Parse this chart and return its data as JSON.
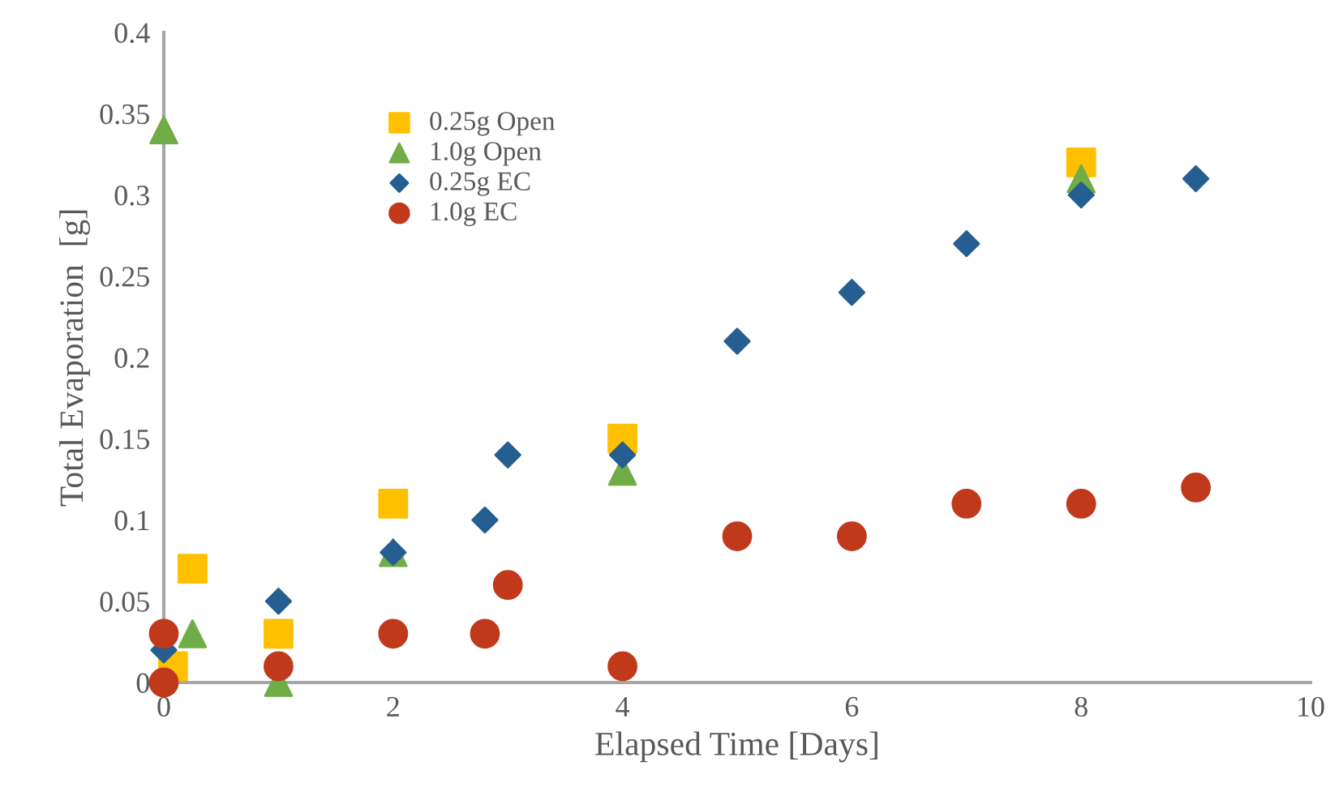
{
  "chart_data": {
    "type": "scatter",
    "xlabel": "Elapsed Time [Days]",
    "ylabel": "Total Evaporation  [g]",
    "xlim": [
      0,
      10
    ],
    "ylim": [
      0,
      0.4
    ],
    "xticks": [
      0,
      2,
      4,
      6,
      8,
      10
    ],
    "yticks": [
      0,
      0.05,
      0.1,
      0.15,
      0.2,
      0.25,
      0.3,
      0.35,
      0.4
    ],
    "grid": false,
    "legend": "top left",
    "series": [
      {
        "name": "0.25g Open",
        "color": "#ffc000",
        "marker": "square",
        "x": [
          0.08,
          0.25,
          1,
          2,
          4,
          8
        ],
        "values": [
          0.01,
          0.07,
          0.03,
          0.11,
          0.15,
          0.32
        ]
      },
      {
        "name": "1.0g Open",
        "color": "#70ad47",
        "marker": "triangle",
        "x": [
          0,
          0.25,
          1,
          2,
          4,
          8
        ],
        "values": [
          0.34,
          0.03,
          0,
          0.08,
          0.13,
          0.31
        ]
      },
      {
        "name": "0.25g EC",
        "color": "#255e91",
        "marker": "diamond",
        "x": [
          0,
          1,
          2,
          2.8,
          3,
          4,
          5,
          6,
          7,
          8,
          9
        ],
        "values": [
          0.02,
          0.05,
          0.08,
          0.1,
          0.14,
          0.14,
          0.21,
          0.24,
          0.27,
          0.3,
          0.31
        ]
      },
      {
        "name": "1.0g EC",
        "color": "#c0391b",
        "marker": "circle",
        "x": [
          0,
          0,
          1,
          2,
          2.8,
          3,
          4,
          5,
          6,
          7,
          8,
          9
        ],
        "values": [
          0.03,
          0,
          0.01,
          0.03,
          0.03,
          0.06,
          0.01,
          0.09,
          0.09,
          0.11,
          0.11,
          0.12
        ]
      }
    ]
  }
}
